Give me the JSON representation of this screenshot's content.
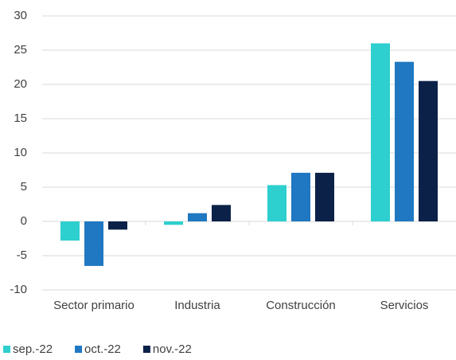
{
  "chart_data": {
    "type": "bar",
    "categories": [
      "Sector primario",
      "Industria",
      "Construcción",
      "Servicios"
    ],
    "series": [
      {
        "name": "sep.-22",
        "color": "#2ecfcf",
        "values": [
          -2.8,
          -0.5,
          5.3,
          26.0
        ]
      },
      {
        "name": "oct.-22",
        "color": "#1f78c1",
        "values": [
          -6.5,
          1.2,
          7.1,
          23.3
        ]
      },
      {
        "name": "nov.-22",
        "color": "#0b2148",
        "values": [
          -1.2,
          2.4,
          7.1,
          20.5
        ]
      }
    ],
    "ylim": [
      -10,
      30
    ],
    "yticks": [
      -10,
      -5,
      0,
      5,
      10,
      15,
      20,
      25,
      30
    ],
    "grid": true,
    "legend": "bottom-left"
  }
}
